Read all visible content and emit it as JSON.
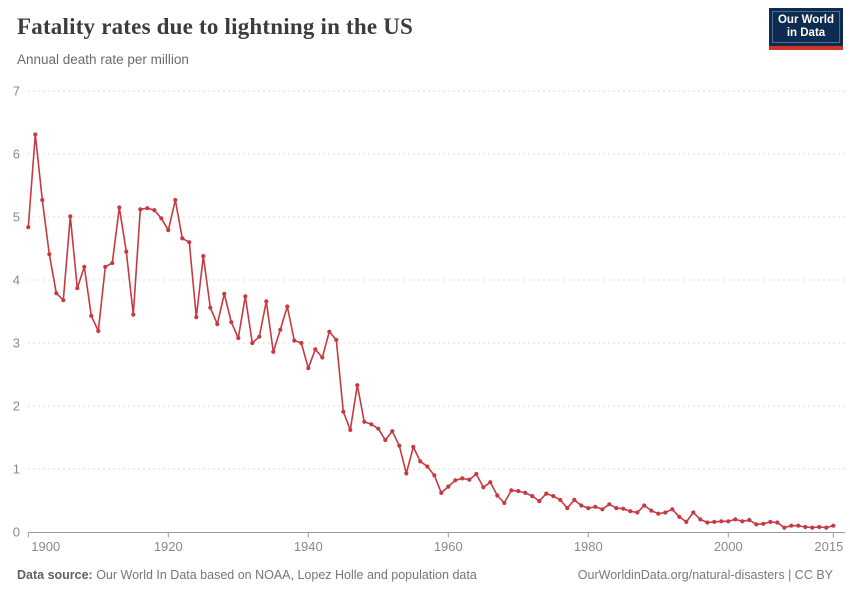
{
  "header": {
    "title": "Fatality rates due to lightning in the US",
    "subtitle": "Annual death rate per million"
  },
  "logo": {
    "line1": "Our World",
    "line2": "in Data"
  },
  "footer": {
    "source_label": "Data source:",
    "source_text": " Our World In Data based on NOAA, Lopez Holle and population data",
    "credit": "OurWorldinData.org/natural-disasters | CC BY"
  },
  "colors": {
    "line": "#c63a42",
    "grid": "#dcdcdc",
    "axis": "#9b9b9b",
    "tick_label": "#8a8a8a",
    "title": "#3c3c3c",
    "logo_bg": "#0d2c4f",
    "logo_bar": "#d1352a"
  },
  "chart_data": {
    "type": "line",
    "title": "Fatality rates due to lightning in the US",
    "subtitle": "Annual death rate per million",
    "xlabel": "",
    "ylabel": "Annual death rate per million",
    "legend": "none",
    "grid": "horizontal-dashed",
    "marker": "circle",
    "xlim": [
      1900,
      2015
    ],
    "ylim": [
      0,
      7
    ],
    "yticks": [
      0,
      1,
      2,
      3,
      4,
      5,
      6,
      7
    ],
    "xticks": [
      1900,
      1920,
      1940,
      1960,
      1980,
      2000,
      2015
    ],
    "x": [
      1900,
      1901,
      1902,
      1903,
      1904,
      1905,
      1906,
      1907,
      1908,
      1909,
      1910,
      1911,
      1912,
      1913,
      1914,
      1915,
      1916,
      1917,
      1918,
      1919,
      1920,
      1921,
      1922,
      1923,
      1924,
      1925,
      1926,
      1927,
      1928,
      1929,
      1930,
      1931,
      1932,
      1933,
      1934,
      1935,
      1936,
      1937,
      1938,
      1939,
      1940,
      1941,
      1942,
      1943,
      1944,
      1945,
      1946,
      1947,
      1948,
      1949,
      1950,
      1951,
      1952,
      1953,
      1954,
      1955,
      1956,
      1957,
      1958,
      1959,
      1960,
      1961,
      1962,
      1963,
      1964,
      1965,
      1966,
      1967,
      1968,
      1969,
      1970,
      1971,
      1972,
      1973,
      1974,
      1975,
      1976,
      1977,
      1978,
      1979,
      1980,
      1981,
      1982,
      1983,
      1984,
      1985,
      1986,
      1987,
      1988,
      1989,
      1990,
      1991,
      1992,
      1993,
      1994,
      1995,
      1996,
      1997,
      1998,
      1999,
      2000,
      2001,
      2002,
      2003,
      2004,
      2005,
      2006,
      2007,
      2008,
      2009,
      2010,
      2011,
      2012,
      2013,
      2014,
      2015
    ],
    "values": [
      4.84,
      6.31,
      5.27,
      4.41,
      3.79,
      3.68,
      5.01,
      3.87,
      4.21,
      3.43,
      3.19,
      4.21,
      4.27,
      5.15,
      4.45,
      3.45,
      5.12,
      5.14,
      5.11,
      4.98,
      4.79,
      5.27,
      4.66,
      4.6,
      3.41,
      4.38,
      3.56,
      3.3,
      3.78,
      3.33,
      3.08,
      3.74,
      3.0,
      3.1,
      3.66,
      2.86,
      3.21,
      3.58,
      3.04,
      3.0,
      2.6,
      2.9,
      2.77,
      3.18,
      3.05,
      1.91,
      1.62,
      2.33,
      1.75,
      1.71,
      1.64,
      1.46,
      1.6,
      1.37,
      0.93,
      1.35,
      1.12,
      1.04,
      0.9,
      0.62,
      0.72,
      0.82,
      0.85,
      0.83,
      0.92,
      0.71,
      0.79,
      0.58,
      0.46,
      0.66,
      0.65,
      0.62,
      0.57,
      0.49,
      0.61,
      0.57,
      0.51,
      0.38,
      0.51,
      0.42,
      0.38,
      0.4,
      0.36,
      0.44,
      0.38,
      0.37,
      0.33,
      0.31,
      0.42,
      0.34,
      0.29,
      0.31,
      0.36,
      0.24,
      0.16,
      0.31,
      0.2,
      0.15,
      0.16,
      0.17,
      0.17,
      0.2,
      0.17,
      0.19,
      0.12,
      0.13,
      0.16,
      0.15,
      0.07,
      0.1,
      0.1,
      0.08,
      0.07,
      0.08,
      0.07,
      0.1
    ]
  }
}
